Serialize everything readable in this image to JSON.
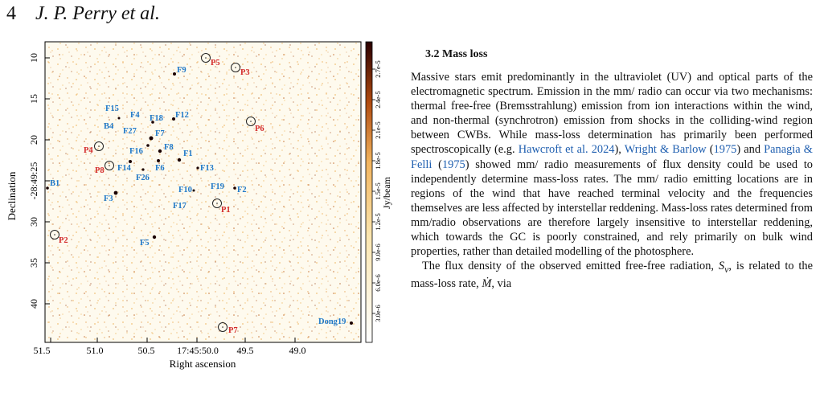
{
  "header": {
    "page_number": "4",
    "authors": "J. P. Perry et al."
  },
  "figure": {
    "x_axis_label": "Right ascension",
    "y_axis_label": "Declination",
    "x_ticks": [
      "51.5",
      "51.0",
      "50.5",
      "17:45:50.0",
      "49.5",
      "49.0"
    ],
    "y_ticks": [
      "10",
      "15",
      "20",
      "-28:49:25",
      "30",
      "35",
      "40"
    ],
    "colorbar_label": "Jy/beam",
    "colorbar_ticks": [
      "3.0e-6",
      "6.0e-6",
      "9.0e-6",
      "1.2e-5",
      "1.5e-5",
      "1.8e-5",
      "2.1e-5",
      "2.4e-5",
      "2.7e-5"
    ],
    "colors": {
      "blue_label": "#1f78c8",
      "red_label": "#d32a2a",
      "cmap_low": "#ffffff",
      "cmap_mid": "#f2b45e",
      "cmap_high": "#2a0000"
    },
    "sources_blue": [
      "F9",
      "F15",
      "F4",
      "F18",
      "F12",
      "B4",
      "F27",
      "F7",
      "F8",
      "F16",
      "F1",
      "F14",
      "F26",
      "F6",
      "F13",
      "B1",
      "F10",
      "F19",
      "F2",
      "F3",
      "F17",
      "F5",
      "Dong19"
    ],
    "sources_red": [
      "P5",
      "P3",
      "P6",
      "P4",
      "P8",
      "P1",
      "P2",
      "P7"
    ]
  },
  "section": {
    "title": "3.2  Mass loss"
  },
  "paragraph1": {
    "t1": "Massive stars emit predominantly in the ultraviolet (UV) and optical parts of the electromagnetic spectrum. Emission in the mm/ radio can occur via two mechanisms: thermal free-free (Bremsstrahlung) emission from ion interactions within the wind, and non-thermal (synchrotron) emission from shocks in the colliding-wind region between CWBs. While mass-loss determination has primarily been performed spectroscopically (e.g. ",
    "cite1": "Hawcroft et al. 2024",
    "t2": "), ",
    "cite2": "Wright & Barlow",
    "t3": " (",
    "cite3": "1975",
    "t4": ") and ",
    "cite4": "Panagia & Felli",
    "t5": " (",
    "cite5": "1975",
    "t6": ") showed mm/ radio measurements of flux density could be used to independently determine mass-loss rates. The mm/ radio emitting locations are in regions of the wind that have reached terminal velocity and the frequencies themselves are less affected by interstellar reddening. Mass-loss rates determined from mm/radio observations are therefore largely insensitive to interstellar reddening, which towards the GC is poorly constrained, and rely primarily on bulk wind properties, rather than detailed modelling of the photosphere."
  },
  "paragraph2": {
    "t1": "The flux density of the observed emitted free-free radiation, ",
    "sym1": "S",
    "sub1": "ν",
    "t2": ", is related to the mass-loss rate, ",
    "sym2": "Ṁ",
    "t3": ", via"
  }
}
